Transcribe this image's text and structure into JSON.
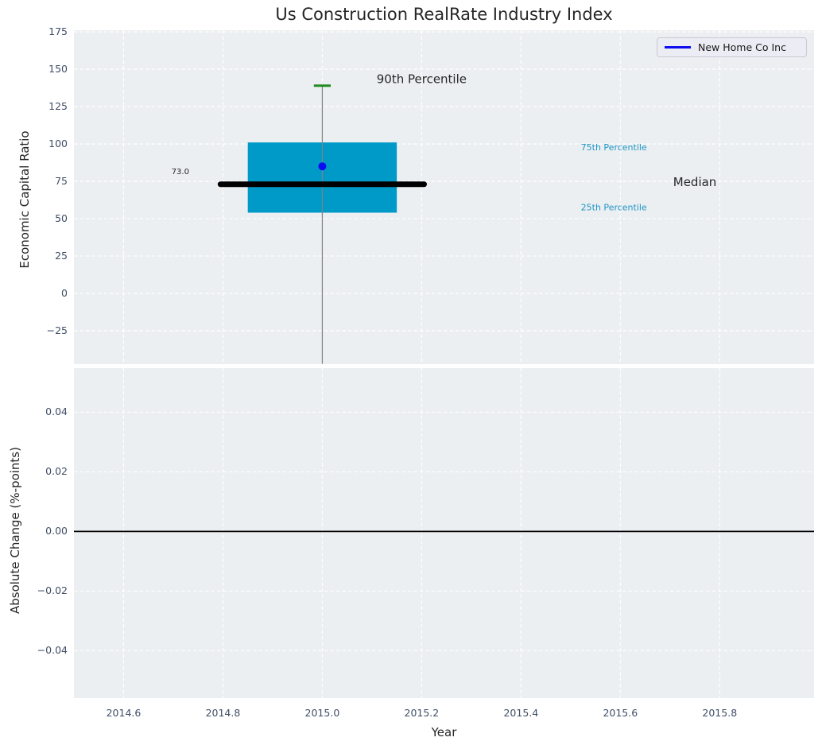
{
  "title": "Us Construction RealRate Industry Index",
  "legend": {
    "label": "New Home Co Inc",
    "line_color": "#0d0df0"
  },
  "colors": {
    "figure_bg": "#ffffff",
    "axes_bg": "#eceff1",
    "grid": "#ffffff",
    "tick_label": "#3f4e66",
    "text": "#262626",
    "percentile_label": "#1e96c8",
    "box_fill": "#009ac9",
    "median_line": "#000000",
    "p90_cap": "#228b22",
    "whisker": "#808080",
    "company_point": "#0d0df0",
    "zero_line": "#000000"
  },
  "chart_data": [
    {
      "type": "boxplot",
      "title": "Us Construction RealRate Industry Index",
      "ylabel": "Economic Capital Ratio",
      "xlim": [
        2014.5,
        2015.99
      ],
      "ylim": [
        -47.1,
        176.1
      ],
      "yticks": [
        175,
        150,
        125,
        100,
        75,
        50,
        25,
        0,
        -25
      ],
      "ytick_labels": [
        "175",
        "150",
        "125",
        "100",
        "75",
        "50",
        "25",
        "0",
        "−25"
      ],
      "xticks": [
        2014.6,
        2014.8,
        2015.0,
        2015.2,
        2015.4,
        2015.6,
        2015.8
      ],
      "show_xtick_labels": false,
      "grid": true,
      "legend_position": "upper right",
      "box": {
        "x": 2015.0,
        "median": 73.0,
        "q1": 54,
        "q3": 101,
        "p90": 139,
        "whisker_low": -47.1,
        "box_halfwidth": 0.15,
        "median_halfwidth": 0.205,
        "cap_halfwidth": 0.017
      },
      "company_point": {
        "name": "New Home Co Inc",
        "x": 2015.0,
        "y": 85
      },
      "annotations": [
        {
          "text": "90th Percentile",
          "x": 2015.2,
          "y": 143.5,
          "size": 15,
          "color": "text",
          "align": "center"
        },
        {
          "text": "73.0",
          "x": 2014.732,
          "y": 81,
          "size": 10,
          "color": "text",
          "align": "right"
        },
        {
          "text": "75th Percentile",
          "x": 2015.587,
          "y": 97.5,
          "size": 11,
          "color": "percentile_label",
          "align": "center"
        },
        {
          "text": "Median",
          "x": 2015.75,
          "y": 74.5,
          "size": 15,
          "color": "text",
          "align": "center"
        },
        {
          "text": "25th Percentile",
          "x": 2015.587,
          "y": 57.5,
          "size": 11,
          "color": "percentile_label",
          "align": "center"
        }
      ]
    },
    {
      "type": "line",
      "ylabel": "Absolute Change (%-points)",
      "xlabel": "Year",
      "xlim": [
        2014.5,
        2015.99
      ],
      "ylim": [
        -0.0559,
        0.0549
      ],
      "yticks": [
        0.04,
        0.02,
        0.0,
        -0.02,
        -0.04
      ],
      "ytick_labels": [
        "0.04",
        "0.02",
        "0.00",
        "−0.02",
        "−0.04"
      ],
      "xticks": [
        2014.6,
        2014.8,
        2015.0,
        2015.2,
        2015.4,
        2015.6,
        2015.8
      ],
      "xtick_labels": [
        "2014.6",
        "2014.8",
        "2015.0",
        "2015.2",
        "2015.4",
        "2015.6",
        "2015.8"
      ],
      "show_xtick_labels": true,
      "grid": true,
      "zero_line_y": 0.0
    }
  ]
}
